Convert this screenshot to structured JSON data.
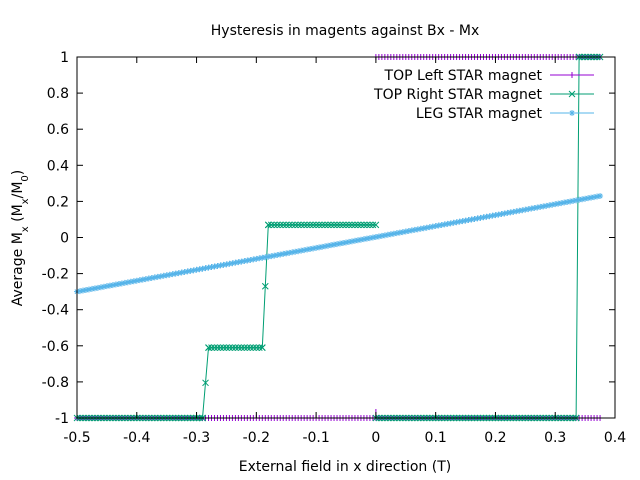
{
  "chart_data": {
    "type": "line",
    "title": "Hysteresis in magents against Bx - Mx",
    "xlabel": "External field in x direction (T)",
    "ylabel_parts": [
      "Average M",
      "x",
      " (M",
      "x",
      "/M",
      "0",
      ")"
    ],
    "xlim": [
      -0.5,
      0.4
    ],
    "ylim": [
      -1,
      1
    ],
    "x_ticks": [
      "-0.5",
      "-0.4",
      "-0.3",
      "-0.2",
      "-0.1",
      "0",
      "0.1",
      "0.2",
      "0.3",
      "0.4"
    ],
    "y_ticks": [
      "1",
      "0.8",
      "0.6",
      "0.4",
      "0.2",
      "0",
      "-0.2",
      "-0.4",
      "-0.6",
      "-0.8",
      "-1"
    ],
    "grid": false,
    "legend_position": "top-right",
    "series": [
      {
        "name": "TOP Left STAR magnet",
        "color": "#9400d3",
        "marker": "plus",
        "segments": [
          [
            [
              -0.5,
              -1
            ],
            [
              0.375,
              -1
            ]
          ],
          [
            [
              0.0,
              -0.95
            ],
            [
              0.0,
              -1
            ]
          ],
          [
            [
              0.0,
              1
            ],
            [
              0.375,
              1
            ]
          ]
        ]
      },
      {
        "name": "TOP Right STAR magnet",
        "color": "#009e73",
        "marker": "cross",
        "segments": [
          [
            [
              -0.5,
              -1
            ],
            [
              -0.29,
              -1
            ],
            [
              -0.28,
              -0.61
            ],
            [
              -0.19,
              -0.61
            ],
            [
              -0.18,
              0.07
            ],
            [
              0.0,
              0.07
            ]
          ],
          [
            [
              0.0,
              -1
            ],
            [
              0.335,
              -1
            ],
            [
              0.34,
              1
            ],
            [
              0.375,
              1
            ]
          ]
        ]
      },
      {
        "name": "LEG STAR magnet",
        "color": "#56b4e9",
        "marker": "star",
        "segments": [
          [
            [
              -0.5,
              -0.3
            ],
            [
              0.375,
              0.23
            ]
          ]
        ]
      }
    ]
  }
}
